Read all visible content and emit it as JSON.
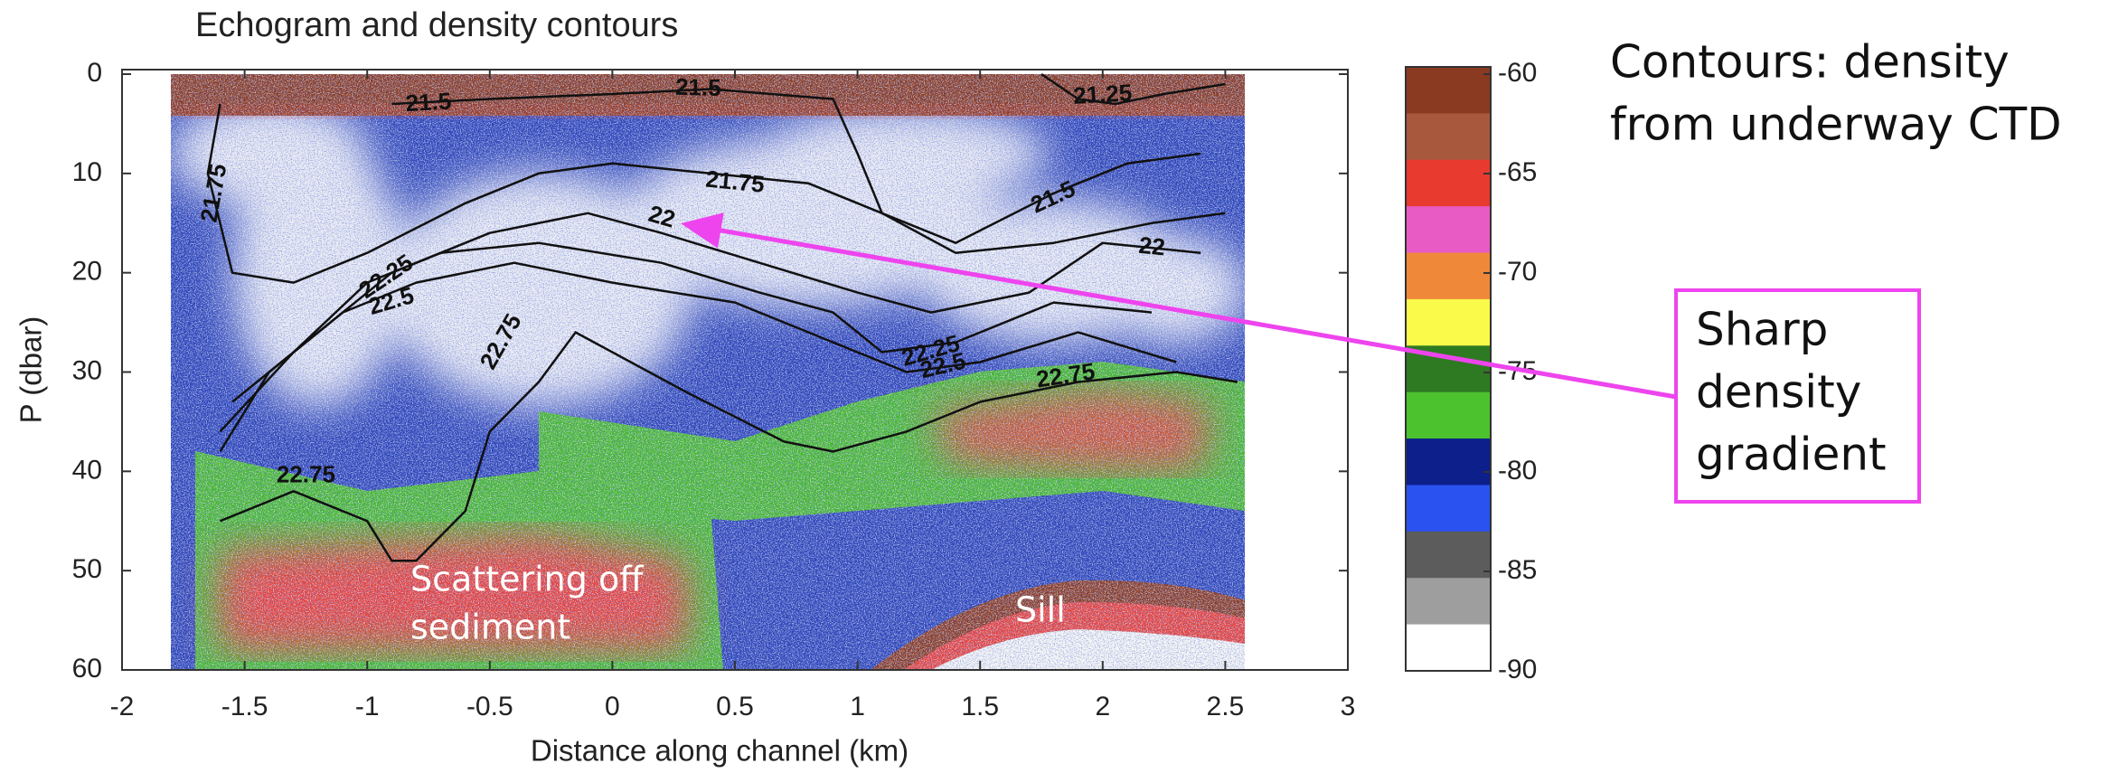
{
  "chart_data": {
    "type": "echogram",
    "title": "Echogram and density contours",
    "xlabel": "Distance along channel (km)",
    "ylabel": "P (dbar)",
    "xlim": [
      -2,
      3
    ],
    "xticks": [
      -2,
      -1.5,
      -1,
      -0.5,
      0,
      0.5,
      1,
      1.5,
      2,
      2.5,
      3
    ],
    "ylim": [
      0,
      60
    ],
    "yticks": [
      0,
      10,
      20,
      30,
      40,
      50,
      60
    ],
    "y_reversed": true,
    "colorbar": {
      "clim": [
        -90,
        -60
      ],
      "ticks": [
        -60,
        -65,
        -70,
        -75,
        -80,
        -85,
        -90
      ],
      "colors": [
        "#8b3a22",
        "#a8583c",
        "#e83a2e",
        "#e85bc4",
        "#f0883a",
        "#fafa4a",
        "#2e7a22",
        "#4cc22e",
        "#0c1f8a",
        "#2a52f0",
        "#5c5c5c",
        "#9e9e9e",
        "#ffffff"
      ]
    },
    "contour_color": "#111111",
    "contours": [
      {
        "label": "21.25",
        "x": [
          1.75,
          1.9,
          2.05,
          2.25,
          2.5
        ],
        "y": [
          0,
          2.5,
          3,
          2,
          1
        ],
        "label_x": [
          2.0
        ],
        "label_y": [
          2.2
        ]
      },
      {
        "label": "21.5",
        "x": [
          -0.9,
          -0.5,
          0,
          0.4,
          0.9,
          1.0,
          1.1,
          1.4,
          1.8,
          2.1,
          2.4
        ],
        "y": [
          3,
          2.5,
          2,
          1.5,
          2.5,
          8,
          14,
          17,
          12,
          9,
          8
        ],
        "label_x": [
          -0.75,
          0.35,
          1.8
        ],
        "label_y": [
          3,
          1.5,
          12.5
        ]
      },
      {
        "label": "21.75",
        "x": [
          -1.6,
          -1.65,
          -1.55,
          -1.3,
          -1,
          -0.6,
          -0.3,
          0,
          0.4,
          0.8,
          1.1,
          1.4,
          1.8,
          2.2,
          2.5
        ],
        "y": [
          3,
          10,
          20,
          21,
          18,
          13,
          10,
          9,
          10,
          11,
          14,
          18,
          17,
          15,
          14
        ],
        "label_x": [
          -1.62,
          0.5
        ],
        "label_y": [
          12,
          11
        ]
      },
      {
        "label": "22",
        "x": [
          -1.55,
          -1.2,
          -0.9,
          -0.5,
          -0.1,
          0.2,
          0.6,
          1.0,
          1.3,
          1.7,
          2.0,
          2.4
        ],
        "y": [
          33,
          26,
          20,
          16,
          14,
          16,
          19,
          22,
          24,
          22,
          17,
          18
        ],
        "label_x": [
          0.2,
          2.2
        ],
        "label_y": [
          14.5,
          17.5
        ]
      },
      {
        "label": "22.25",
        "x": [
          -1.6,
          -1.3,
          -1.0,
          -0.7,
          -0.3,
          0.2,
          0.6,
          0.9,
          1.1,
          1.4,
          1.8,
          2.2
        ],
        "y": [
          36,
          28,
          21,
          18,
          17,
          19,
          22,
          24,
          28,
          27,
          23,
          24
        ],
        "label_x": [
          -0.92,
          1.3
        ],
        "label_y": [
          20.5,
          28
        ]
      },
      {
        "label": "22.5",
        "x": [
          -1.6,
          -1.4,
          -1.1,
          -0.8,
          -0.4,
          0,
          0.5,
          0.9,
          1.2,
          1.5,
          1.9,
          2.3
        ],
        "y": [
          38,
          30,
          24,
          21,
          19,
          21,
          23,
          27,
          30,
          29,
          26,
          29
        ],
        "label_x": [
          -0.9,
          1.35
        ],
        "label_y": [
          23,
          29.5
        ]
      },
      {
        "label": "22.75",
        "x": [
          -1.6,
          -1.3,
          -1.0,
          -0.9,
          -0.8,
          -0.6,
          -0.5,
          -0.3,
          -0.15,
          0.3,
          0.7,
          0.9,
          1.2,
          1.5,
          1.9,
          2.3,
          2.55
        ],
        "y": [
          45,
          42,
          45,
          49,
          49,
          44,
          36,
          31,
          26,
          32,
          37,
          38,
          36,
          33,
          31,
          30,
          31
        ],
        "label_x": [
          -0.45,
          -1.25,
          1.85
        ],
        "label_y": [
          27,
          40.5,
          30.5
        ]
      }
    ],
    "annotations": {
      "scattering": [
        "Scattering off",
        "sediment"
      ],
      "sill": "Sill",
      "contour_note": [
        "Contours: density",
        "from underway CTD"
      ],
      "gradient": [
        "Sharp",
        "density",
        "gradient"
      ]
    },
    "highlight_color": "#ee44ee"
  }
}
